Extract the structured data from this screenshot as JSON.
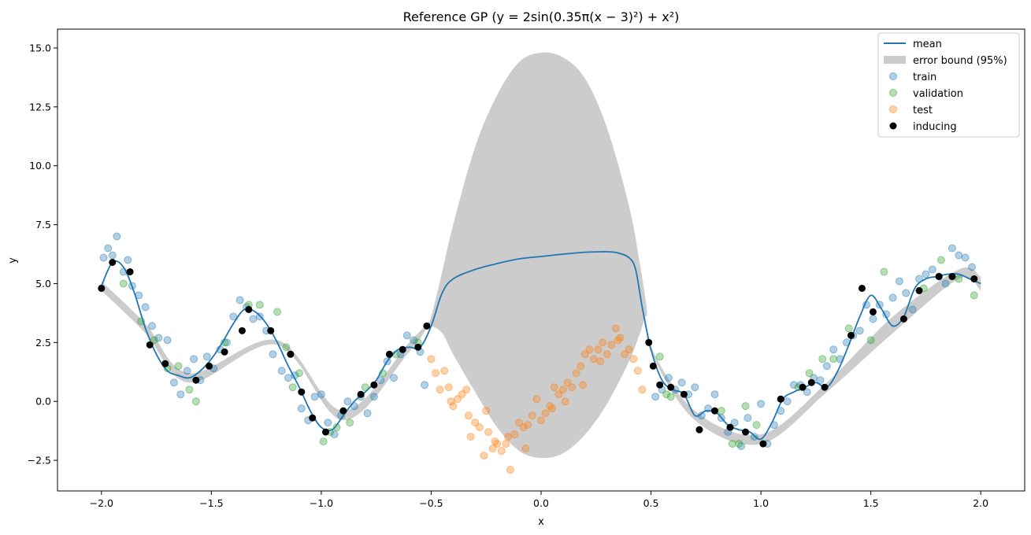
{
  "chart_data": {
    "type": "scatter",
    "title": "Reference GP (y = 2sin(0.35π(x − 3)²) + x²)",
    "xlabel": "x",
    "ylabel": "y",
    "xlim": [
      -2.2,
      2.2
    ],
    "ylim": [
      -3.8,
      15.8
    ],
    "x_ticks": [
      -2.0,
      -1.5,
      -1.0,
      -0.5,
      0.0,
      0.5,
      1.0,
      1.5,
      2.0
    ],
    "x_tick_labels": [
      "−2.0",
      "−1.5",
      "−1.0",
      "−0.5",
      "0.0",
      "0.5",
      "1.0",
      "1.5",
      "2.0"
    ],
    "y_ticks": [
      -2.5,
      0.0,
      2.5,
      5.0,
      7.5,
      10.0,
      12.5,
      15.0
    ],
    "y_tick_labels": [
      "−2.5",
      "0.0",
      "2.5",
      "5.0",
      "7.5",
      "10.0",
      "12.5",
      "15.0"
    ],
    "grid": false,
    "legend_position": "top-right",
    "colors": {
      "mean": "#1f77b4",
      "band": "#cccccc",
      "train": "#1f77b4",
      "validation": "#2ca02c",
      "test": "#ff7f0e",
      "inducing": "#000000"
    },
    "legend": [
      "mean",
      "error bound (95%)",
      "train",
      "validation",
      "test",
      "inducing"
    ],
    "series": [
      {
        "name": "mean",
        "kind": "line",
        "x": [
          -2.0,
          -1.95,
          -1.9,
          -1.85,
          -1.8,
          -1.75,
          -1.7,
          -1.65,
          -1.6,
          -1.55,
          -1.5,
          -1.45,
          -1.4,
          -1.35,
          -1.3,
          -1.25,
          -1.2,
          -1.15,
          -1.1,
          -1.05,
          -1.0,
          -0.95,
          -0.9,
          -0.85,
          -0.8,
          -0.75,
          -0.7,
          -0.65,
          -0.6,
          -0.55,
          -0.5,
          -0.45,
          -0.4,
          -0.3,
          -0.2,
          -0.1,
          0.0,
          0.1,
          0.2,
          0.3,
          0.35,
          0.4,
          0.43,
          0.46,
          0.5,
          0.55,
          0.6,
          0.65,
          0.7,
          0.75,
          0.8,
          0.85,
          0.9,
          0.95,
          1.0,
          1.05,
          1.1,
          1.15,
          1.2,
          1.25,
          1.3,
          1.35,
          1.4,
          1.45,
          1.5,
          1.55,
          1.6,
          1.65,
          1.7,
          1.75,
          1.8,
          1.85,
          1.9,
          1.95,
          2.0
        ],
        "y": [
          4.9,
          5.9,
          5.7,
          4.6,
          3.1,
          2.0,
          1.3,
          1.1,
          1.0,
          1.3,
          1.8,
          2.5,
          3.3,
          3.9,
          3.8,
          3.3,
          2.5,
          1.5,
          0.6,
          -0.4,
          -1.1,
          -1.2,
          -0.6,
          0.0,
          0.4,
          0.9,
          1.7,
          2.2,
          2.3,
          2.3,
          3.2,
          4.6,
          5.2,
          5.6,
          5.85,
          6.05,
          6.15,
          6.25,
          6.33,
          6.35,
          6.3,
          6.1,
          5.6,
          4.0,
          2.2,
          0.9,
          0.5,
          0.3,
          -0.6,
          -0.4,
          -0.5,
          -1.0,
          -1.2,
          -1.3,
          -1.6,
          -0.9,
          0.1,
          0.4,
          0.6,
          0.8,
          0.6,
          1.3,
          2.4,
          3.6,
          4.5,
          3.9,
          3.2,
          3.6,
          4.8,
          5.2,
          5.3,
          5.4,
          5.4,
          5.2,
          5.0
        ]
      },
      {
        "name": "error bound (95%)",
        "kind": "band",
        "x": [
          -2.0,
          -1.8,
          -1.6,
          -1.2,
          -0.9,
          -0.6,
          -0.52,
          -0.5,
          -0.45,
          -0.4,
          -0.3,
          -0.2,
          -0.1,
          0.0,
          0.1,
          0.2,
          0.3,
          0.4,
          0.45,
          0.48,
          0.5,
          0.7,
          1.0,
          1.3,
          1.6,
          1.9,
          2.0
        ],
        "upper": [
          5.1,
          3.3,
          1.2,
          2.6,
          -0.4,
          2.5,
          3.3,
          3.6,
          5.5,
          7.5,
          10.8,
          13.0,
          14.4,
          14.8,
          14.6,
          13.7,
          11.6,
          8.3,
          5.8,
          4.0,
          2.3,
          -0.4,
          -1.4,
          0.8,
          3.6,
          5.6,
          5.3
        ],
        "lower": [
          4.7,
          2.9,
          0.8,
          2.4,
          -0.8,
          2.1,
          3.1,
          3.2,
          2.9,
          2.0,
          0.4,
          -1.1,
          -2.1,
          -2.4,
          -2.2,
          -1.4,
          -0.1,
          1.7,
          2.9,
          3.6,
          2.1,
          -0.8,
          -1.8,
          0.4,
          2.9,
          5.2,
          4.7
        ]
      },
      {
        "name": "train",
        "kind": "scatter",
        "x": [
          -1.99,
          -1.97,
          -1.95,
          -1.93,
          -1.9,
          -1.88,
          -1.86,
          -1.83,
          -1.8,
          -1.77,
          -1.74,
          -1.7,
          -1.67,
          -1.64,
          -1.61,
          -1.58,
          -1.55,
          -1.52,
          -1.49,
          -1.46,
          -1.43,
          -1.4,
          -1.37,
          -1.34,
          -1.31,
          -1.28,
          -1.25,
          -1.22,
          -1.18,
          -1.15,
          -1.12,
          -1.09,
          -1.06,
          -1.03,
          -1.0,
          -0.97,
          -0.94,
          -0.91,
          -0.88,
          -0.85,
          -0.82,
          -0.79,
          -0.76,
          -0.73,
          -0.7,
          -0.67,
          -0.64,
          -0.61,
          -0.58,
          -0.55,
          -0.53,
          0.52,
          0.55,
          0.58,
          0.61,
          0.64,
          0.67,
          0.7,
          0.73,
          0.76,
          0.79,
          0.82,
          0.85,
          0.88,
          0.91,
          0.94,
          0.97,
          1.0,
          1.03,
          1.06,
          1.09,
          1.12,
          1.15,
          1.18,
          1.21,
          1.24,
          1.27,
          1.3,
          1.33,
          1.36,
          1.39,
          1.42,
          1.45,
          1.48,
          1.51,
          1.54,
          1.57,
          1.6,
          1.63,
          1.66,
          1.69,
          1.72,
          1.75,
          1.78,
          1.81,
          1.84,
          1.87,
          1.9,
          1.93,
          1.96
        ],
        "y": [
          6.1,
          6.5,
          6.2,
          7.0,
          5.5,
          6.0,
          4.9,
          4.5,
          4.0,
          3.2,
          2.7,
          2.6,
          0.8,
          0.3,
          1.3,
          1.8,
          0.9,
          1.9,
          1.4,
          2.2,
          2.5,
          3.6,
          4.3,
          4.0,
          3.5,
          3.6,
          3.0,
          2.0,
          1.3,
          1.0,
          1.1,
          -0.3,
          -0.8,
          0.2,
          0.3,
          -0.9,
          -1.4,
          -0.6,
          0.0,
          -0.2,
          0.2,
          -0.5,
          0.2,
          0.9,
          1.7,
          1.0,
          2.0,
          2.8,
          2.6,
          2.1,
          0.7,
          0.2,
          0.5,
          1.0,
          0.5,
          0.8,
          0.3,
          0.6,
          -0.6,
          -0.3,
          0.3,
          -0.7,
          -1.3,
          -0.9,
          -1.9,
          -0.7,
          -1.5,
          -0.1,
          -1.8,
          -1.0,
          -0.4,
          0.0,
          0.7,
          0.7,
          0.4,
          1.0,
          0.9,
          1.5,
          2.2,
          1.8,
          2.5,
          2.8,
          3.0,
          4.1,
          3.5,
          4.1,
          3.7,
          4.4,
          5.1,
          4.6,
          3.9,
          5.2,
          5.4,
          5.6,
          5.3,
          5.0,
          6.5,
          6.2,
          6.1,
          5.7
        ]
      },
      {
        "name": "validation",
        "kind": "scatter",
        "x": [
          -1.9,
          -1.82,
          -1.76,
          -1.7,
          -1.65,
          -1.6,
          -1.57,
          -1.44,
          -1.33,
          -1.28,
          -1.2,
          -1.16,
          -1.13,
          -1.1,
          -0.99,
          -0.96,
          -0.93,
          -0.87,
          -0.8,
          -0.72,
          -0.66,
          -0.56,
          0.54,
          0.57,
          0.59,
          0.82,
          0.87,
          0.9,
          0.93,
          0.98,
          1.17,
          1.22,
          1.28,
          1.33,
          1.4,
          1.5,
          1.56,
          1.74,
          1.82,
          1.9,
          1.97
        ],
        "y": [
          5.0,
          3.4,
          2.6,
          1.4,
          1.5,
          0.5,
          0.0,
          2.5,
          4.1,
          4.1,
          3.8,
          2.3,
          0.6,
          1.2,
          -1.7,
          -1.3,
          -1.1,
          -0.9,
          0.6,
          1.2,
          2.0,
          2.5,
          1.9,
          0.3,
          0.2,
          -0.4,
          -1.8,
          -1.8,
          -0.2,
          -1.0,
          0.6,
          1.2,
          1.8,
          1.8,
          3.1,
          2.6,
          5.5,
          4.8,
          6.0,
          5.2,
          4.5
        ]
      },
      {
        "name": "test",
        "kind": "scatter",
        "x": [
          -0.5,
          -0.48,
          -0.46,
          -0.44,
          -0.42,
          -0.4,
          -0.38,
          -0.36,
          -0.34,
          -0.32,
          -0.3,
          -0.28,
          -0.26,
          -0.24,
          -0.22,
          -0.2,
          -0.18,
          -0.16,
          -0.14,
          -0.12,
          -0.1,
          -0.08,
          -0.06,
          -0.04,
          -0.02,
          0.0,
          0.02,
          0.04,
          0.06,
          0.08,
          0.1,
          0.12,
          0.14,
          0.16,
          0.18,
          0.2,
          0.22,
          0.24,
          0.26,
          0.28,
          0.3,
          0.32,
          0.34,
          0.36,
          0.38,
          0.4,
          0.42,
          0.44,
          0.46,
          -0.41,
          -0.33,
          -0.25,
          -0.21,
          -0.15,
          -0.07,
          0.05,
          0.11,
          0.19,
          0.27,
          0.35
        ],
        "y": [
          1.8,
          1.2,
          0.5,
          1.3,
          0.6,
          -0.2,
          0.1,
          0.3,
          0.5,
          -1.5,
          -0.9,
          -1.1,
          -2.3,
          -1.3,
          -2.0,
          -1.8,
          -2.1,
          -1.8,
          -2.9,
          -1.4,
          -0.9,
          -1.1,
          -1.0,
          -0.6,
          0.1,
          -0.8,
          -0.5,
          -0.2,
          0.6,
          0.3,
          0.5,
          0.8,
          0.6,
          1.2,
          1.5,
          2.0,
          2.2,
          1.8,
          2.2,
          2.5,
          2.0,
          2.4,
          3.1,
          2.7,
          2.0,
          2.2,
          1.8,
          1.3,
          0.5,
          0.0,
          -0.6,
          -0.4,
          -1.7,
          -1.5,
          -2.0,
          -0.3,
          0.0,
          0.7,
          1.7,
          2.6
        ]
      },
      {
        "name": "inducing",
        "kind": "scatter",
        "x": [
          -2.0,
          -1.95,
          -1.87,
          -1.78,
          -1.71,
          -1.57,
          -1.51,
          -1.44,
          -1.36,
          -1.33,
          -1.23,
          -1.14,
          -1.09,
          -1.04,
          -0.98,
          -0.9,
          -0.82,
          -0.76,
          -0.69,
          -0.63,
          -0.56,
          -0.52,
          0.49,
          0.51,
          0.54,
          0.59,
          0.65,
          0.72,
          0.79,
          0.86,
          0.93,
          1.01,
          1.09,
          1.19,
          1.23,
          1.29,
          1.41,
          1.46,
          1.51,
          1.65,
          1.72,
          1.81,
          1.87,
          1.97
        ],
        "y": [
          4.8,
          5.9,
          5.5,
          2.4,
          1.6,
          0.9,
          1.5,
          2.1,
          3.0,
          3.9,
          3.0,
          2.0,
          0.4,
          -0.7,
          -1.3,
          -0.4,
          0.3,
          0.7,
          2.0,
          2.2,
          2.3,
          3.2,
          2.5,
          1.5,
          0.7,
          0.6,
          0.3,
          -1.2,
          -0.4,
          -1.1,
          -1.3,
          -1.8,
          0.1,
          0.6,
          0.8,
          0.6,
          2.8,
          4.8,
          3.8,
          3.5,
          4.7,
          5.3,
          5.3,
          5.2
        ]
      }
    ]
  }
}
